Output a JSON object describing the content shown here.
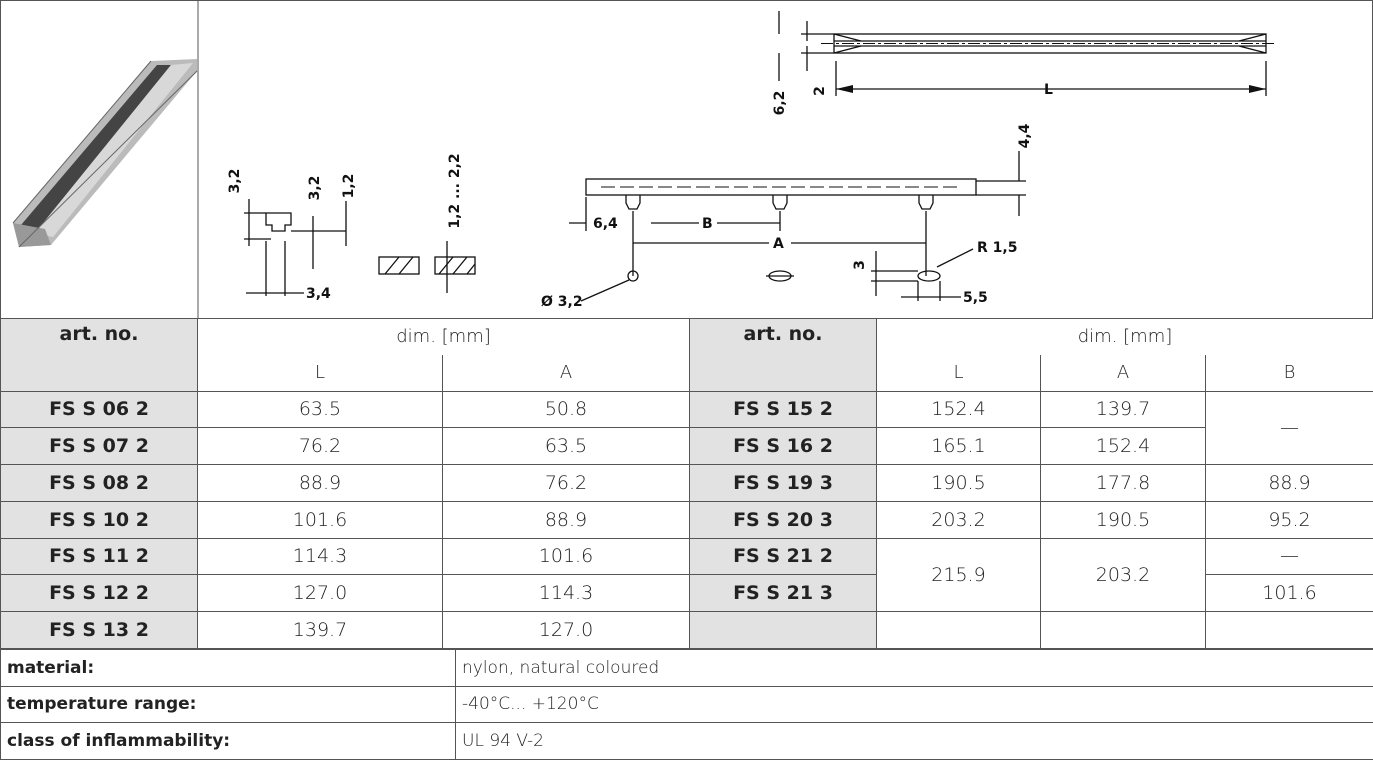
{
  "drawing_labels": [
    "3,2",
    "3,2",
    "1,2",
    "1,2 ... 2,2",
    "3,4",
    "6,4",
    "B",
    "A",
    "Ø 3,2",
    "3",
    "R 1,5",
    "5,5",
    "6,2",
    "2",
    "L",
    "4,4"
  ],
  "table": {
    "header_left": [
      "art. no.",
      "dim. [mm]",
      "L",
      "A"
    ],
    "header_right": [
      "art. no.",
      "dim. [mm]",
      "L",
      "A",
      "B"
    ],
    "rows_left": [
      [
        "FS S 06 2",
        "63.5",
        "50.8"
      ],
      [
        "FS S 07 2",
        "76.2",
        "63.5"
      ],
      [
        "FS S 08 2",
        "88.9",
        "76.2"
      ],
      [
        "FS S 10 2",
        "101.6",
        "88.9"
      ],
      [
        "FS S 11 2",
        "114.3",
        "101.6"
      ],
      [
        "FS S 12 2",
        "127.0",
        "114.3"
      ],
      [
        "FS S 13 2",
        "139.7",
        "127.0"
      ]
    ],
    "rows_right": [
      [
        "FS S 15 2",
        "152.4",
        "139.7",
        "—"
      ],
      [
        "FS S 16 2",
        "165.1",
        "152.4"
      ],
      [
        "FS S 19 3",
        "190.5",
        "177.8",
        "88.9"
      ],
      [
        "FS S 20 3",
        "203.2",
        "190.5",
        "95.2"
      ],
      [
        "FS S 21 2",
        "215.9",
        "203.2",
        "—"
      ],
      [
        "FS S 21 3",
        "101.6"
      ]
    ]
  },
  "specs": [
    {
      "label": "material:",
      "value": "nylon, natural coloured"
    },
    {
      "label": "temperature range:",
      "value": "-40°C... +120°C"
    },
    {
      "label": "class of inflammability:",
      "value": "UL 94 V-2"
    }
  ]
}
